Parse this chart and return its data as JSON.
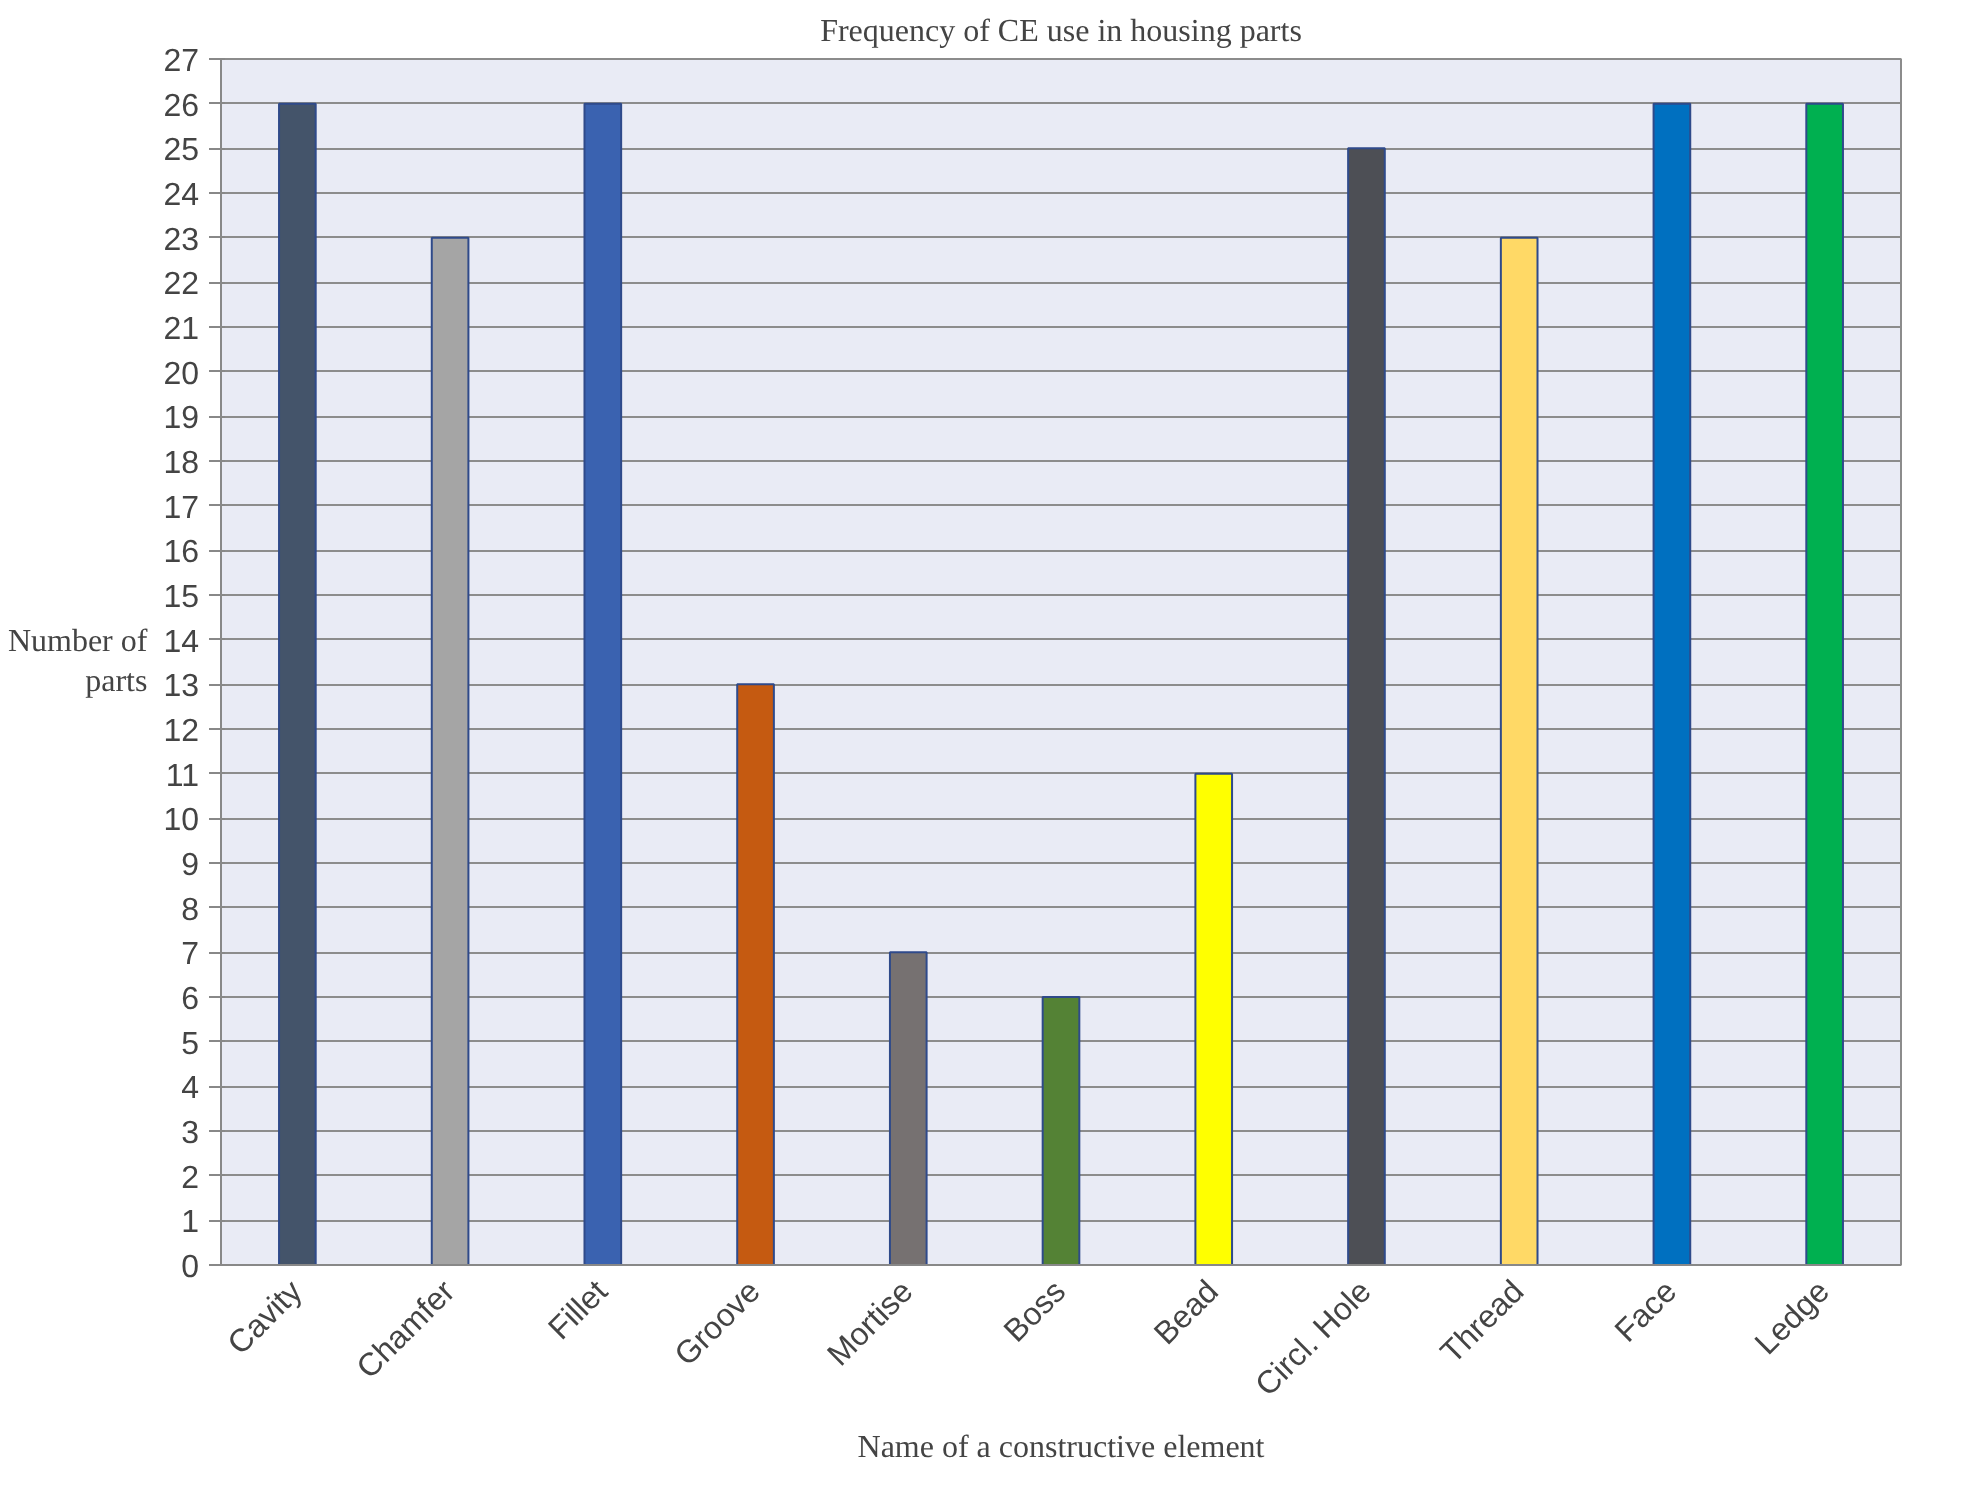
{
  "chart_data": {
    "type": "bar",
    "title": "Frequency of CE use in housing parts",
    "xlabel": "Name of a constructive element",
    "ylabel": "Number of parts",
    "categories": [
      "Cavity",
      "Chamfer",
      "Fillet",
      "Groove",
      "Mortise",
      "Boss",
      "Bead",
      "Circl. Hole",
      "Thread",
      "Face",
      "Ledge"
    ],
    "values": [
      26,
      23,
      26,
      13,
      7,
      6,
      11,
      25,
      23,
      26,
      26
    ],
    "colors": [
      "#44546a",
      "#a5a5a5",
      "#3a62b0",
      "#c55a11",
      "#767171",
      "#548235",
      "#ffff00",
      "#4d4f55",
      "#ffd966",
      "#0070c0",
      "#00b050"
    ],
    "ylim": [
      0,
      27
    ],
    "yticks": [
      0,
      1,
      2,
      3,
      4,
      5,
      6,
      7,
      8,
      9,
      10,
      11,
      12,
      13,
      14,
      15,
      16,
      17,
      18,
      19,
      20,
      21,
      22,
      23,
      24,
      25,
      26,
      27
    ],
    "grid": "y"
  }
}
